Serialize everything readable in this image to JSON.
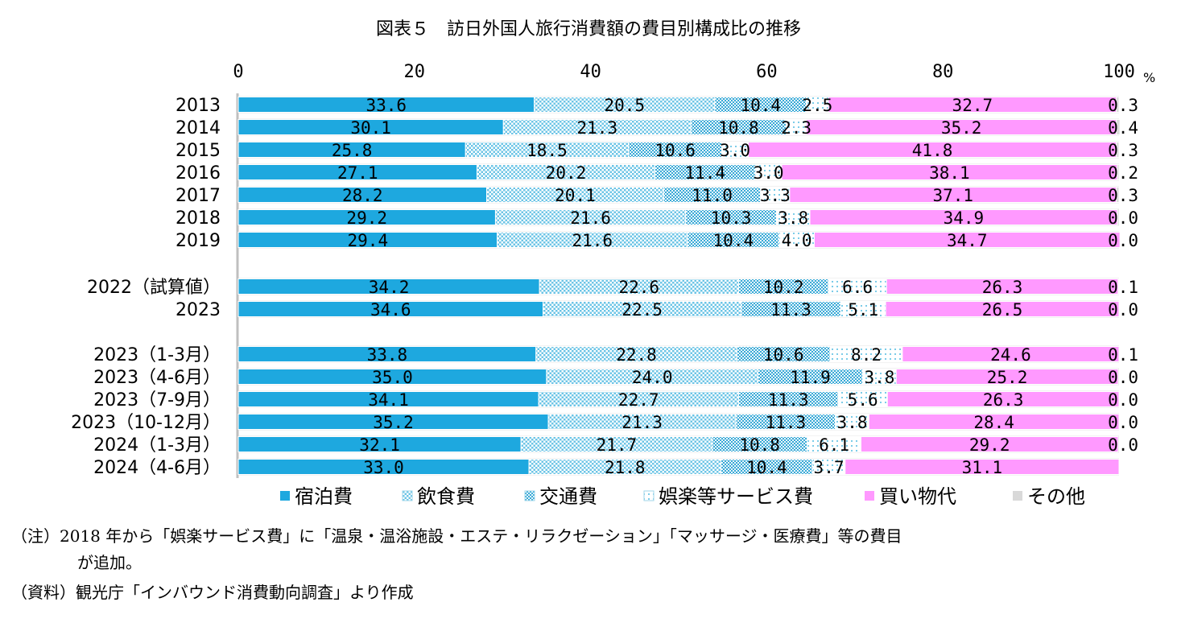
{
  "chart_data": {
    "type": "bar",
    "orientation": "horizontal",
    "stacked": true,
    "title": "図表５　訪日外国人旅行消費額の費目別構成比の推移",
    "xlim": [
      0,
      100
    ],
    "xticks": [
      "0",
      "20",
      "40",
      "60",
      "80",
      "100"
    ],
    "xunit": "%",
    "categories": [
      "2013",
      "2014",
      "2015",
      "2016",
      "2017",
      "2018",
      "2019",
      "2022（試算値）",
      "2023",
      "2023（1-3月）",
      "2023（4-6月）",
      "2023（7-9月）",
      "2023（10-12月）",
      "2024（1-3月）",
      "2024（4-6月）"
    ],
    "series": [
      {
        "name": "宿泊費",
        "color": "#1EA8DF",
        "pattern": "solid",
        "values": [
          33.6,
          30.1,
          25.8,
          27.1,
          28.2,
          29.2,
          29.4,
          34.2,
          34.6,
          33.8,
          35.0,
          34.1,
          35.2,
          32.1,
          33.0
        ],
        "labels": [
          "33.6",
          "30.1",
          "25.8",
          "27.1",
          "28.2",
          "29.2",
          "29.4",
          "34.2",
          "34.6",
          "33.8",
          "35.0",
          "34.1",
          "35.2",
          "32.1",
          "33.0"
        ]
      },
      {
        "name": "飲食費",
        "color": "#7CCCE8",
        "pattern": "dots",
        "values": [
          20.5,
          21.3,
          18.5,
          20.2,
          20.1,
          21.6,
          21.6,
          22.6,
          22.5,
          22.8,
          24.0,
          22.7,
          21.3,
          21.7,
          21.8
        ],
        "labels": [
          "20.5",
          "21.3",
          "18.5",
          "20.2",
          "20.1",
          "21.6",
          "21.6",
          "22.6",
          "22.5",
          "22.8",
          "24.0",
          "22.7",
          "21.3",
          "21.7",
          "21.8"
        ]
      },
      {
        "name": "交通費",
        "color": "#5BB8DA",
        "pattern": "checker",
        "values": [
          10.4,
          10.8,
          10.6,
          11.4,
          11.0,
          10.3,
          10.4,
          10.2,
          11.3,
          10.6,
          11.9,
          11.3,
          11.3,
          10.8,
          10.4
        ],
        "labels": [
          "10.4",
          "10.8",
          "10.6",
          "11.4",
          "11.0",
          "10.3",
          "10.4",
          "10.2",
          "11.3",
          "10.6",
          "11.9",
          "11.3",
          "11.3",
          "10.8",
          "10.4"
        ]
      },
      {
        "name": "娯楽等サービス費",
        "color": "#A9DCEF",
        "pattern": "sparse",
        "values": [
          2.5,
          2.3,
          3.0,
          3.0,
          3.3,
          3.8,
          4.0,
          6.6,
          5.1,
          8.2,
          3.8,
          5.6,
          3.8,
          6.1,
          3.7
        ],
        "labels": [
          "2.5",
          "2.3",
          "3.0",
          "3.0",
          "3.3",
          "3.8",
          "4.0",
          "6.6",
          "5.1",
          "8.2",
          "3.8",
          "5.6",
          "3.8",
          "6.1",
          "3.7"
        ]
      },
      {
        "name": "買い物代",
        "color": "#FF99FF",
        "pattern": "solid",
        "values": [
          32.7,
          35.2,
          41.8,
          38.1,
          37.1,
          34.9,
          34.7,
          26.3,
          26.5,
          24.6,
          25.2,
          26.3,
          28.4,
          29.2,
          31.1
        ],
        "labels": [
          "32.7",
          "35.2",
          "41.8",
          "38.1",
          "37.1",
          "34.9",
          "34.7",
          "26.3",
          "26.5",
          "24.6",
          "25.2",
          "26.3",
          "28.4",
          "29.2",
          "31.1"
        ]
      },
      {
        "name": "その他",
        "color": "#D9D9D9",
        "pattern": "solid",
        "values": [
          0.3,
          0.4,
          0.3,
          0.2,
          0.3,
          0.0,
          0.0,
          0.1,
          0.0,
          0.1,
          0.0,
          0.0,
          0.0,
          0.0,
          0.0
        ],
        "labels": [
          "0.3",
          "0.4",
          "0.3",
          "0.2",
          "0.3",
          "0.0",
          "0.0",
          "0.1",
          "0.0",
          "0.1",
          "0.0",
          "0.0",
          "0.0",
          "0.0",
          ""
        ]
      }
    ],
    "legend_position": "bottom",
    "grid": false
  },
  "notes": {
    "note_line1": "（注）2018 年から「娯楽サービス費」に「温泉・温浴施設・エステ・リラクゼーション」「マッサージ・医療費」等の費目",
    "note_line2": "が追加。",
    "source": "（資料）観光庁「インバウンド消費動向調査」より作成"
  }
}
